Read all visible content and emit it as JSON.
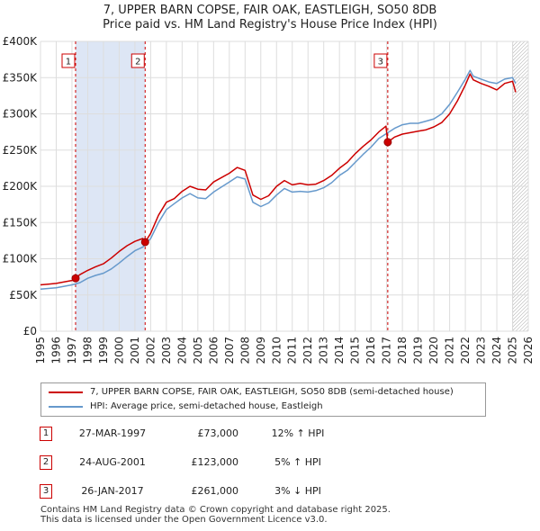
{
  "title_line1": "7, UPPER BARN COPSE, FAIR OAK, EASTLEIGH, SO50 8DB",
  "title_line2": "Price paid vs. HM Land Registry's House Price Index (HPI)",
  "legend": {
    "property": "7, UPPER BARN COPSE, FAIR OAK, EASTLEIGH, SO50 8DB (semi-detached house)",
    "hpi": "HPI: Average price, semi-detached house, Eastleigh"
  },
  "sales": [
    {
      "num": "1",
      "date": "27-MAR-1997",
      "price": "£73,000",
      "hpi": "12% ↑ HPI"
    },
    {
      "num": "2",
      "date": "24-AUG-2001",
      "price": "£123,000",
      "hpi": "5% ↑ HPI"
    },
    {
      "num": "3",
      "date": "26-JAN-2017",
      "price": "£261,000",
      "hpi": "3% ↓ HPI"
    }
  ],
  "footer_line1": "Contains HM Land Registry data © Crown copyright and database right 2025.",
  "footer_line2": "This data is licensed under the Open Government Licence v3.0.",
  "chart_data": {
    "type": "line",
    "title": "7, UPPER BARN COPSE, FAIR OAK, EASTLEIGH, SO50 8DB",
    "subtitle": "Price paid vs. HM Land Registry's House Price Index (HPI)",
    "xlabel": "",
    "ylabel": "",
    "xlim": [
      1995,
      2026
    ],
    "ylim": [
      0,
      400000
    ],
    "ytick_values": [
      0,
      50000,
      100000,
      150000,
      200000,
      250000,
      300000,
      350000,
      400000
    ],
    "ytick_labels": [
      "£0",
      "£50K",
      "£100K",
      "£150K",
      "£200K",
      "£250K",
      "£300K",
      "£350K",
      "£400K"
    ],
    "xtick_labels": [
      "1995",
      "1996",
      "1997",
      "1998",
      "1999",
      "2000",
      "2001",
      "2002",
      "2003",
      "2004",
      "2005",
      "2006",
      "2007",
      "2008",
      "2009",
      "2010",
      "2011",
      "2012",
      "2013",
      "2014",
      "2015",
      "2016",
      "2017",
      "2018",
      "2019",
      "2020",
      "2021",
      "2022",
      "2023",
      "2024",
      "2025",
      "2026"
    ],
    "grid": true,
    "legend_position": "below",
    "colors": {
      "property": "#cc0000",
      "hpi": "#6699cc",
      "shade": "#dde6f5",
      "grid": "#dddddd"
    },
    "series": [
      {
        "name": "7, UPPER BARN COPSE, FAIR OAK, EASTLEIGH, SO50 8DB (semi-detached house)",
        "x": [
          1995.0,
          1995.5,
          1996.0,
          1996.5,
          1997.0,
          1997.23,
          1997.5,
          1998.0,
          1998.5,
          1999.0,
          1999.5,
          2000.0,
          2000.5,
          2001.0,
          2001.5,
          2001.65,
          2002.0,
          2002.5,
          2003.0,
          2003.5,
          2004.0,
          2004.5,
          2005.0,
          2005.5,
          2006.0,
          2006.5,
          2007.0,
          2007.5,
          2008.0,
          2008.5,
          2009.0,
          2009.5,
          2010.0,
          2010.5,
          2011.0,
          2011.5,
          2012.0,
          2012.5,
          2013.0,
          2013.5,
          2014.0,
          2014.5,
          2015.0,
          2015.5,
          2016.0,
          2016.5,
          2016.95,
          2017.07,
          2017.5,
          2018.0,
          2018.5,
          2019.0,
          2019.5,
          2020.0,
          2020.5,
          2021.0,
          2021.5,
          2022.0,
          2022.3,
          2022.5,
          2023.0,
          2023.5,
          2024.0,
          2024.5,
          2025.0,
          2025.2
        ],
        "y": [
          64000,
          65000,
          66000,
          68000,
          70000,
          73000,
          78000,
          84000,
          89000,
          93000,
          101000,
          110000,
          118000,
          124000,
          128000,
          123000,
          135000,
          160000,
          178000,
          183000,
          193000,
          200000,
          196000,
          195000,
          206000,
          212000,
          218000,
          226000,
          222000,
          188000,
          182000,
          187000,
          200000,
          208000,
          202000,
          204000,
          202000,
          203000,
          208000,
          215000,
          225000,
          233000,
          245000,
          255000,
          264000,
          275000,
          283000,
          261000,
          268000,
          272000,
          274000,
          276000,
          278000,
          282000,
          288000,
          300000,
          318000,
          340000,
          355000,
          347000,
          342000,
          338000,
          333000,
          342000,
          345000,
          330000
        ]
      },
      {
        "name": "HPI: Average price, semi-detached house, Eastleigh",
        "x": [
          1995.0,
          1995.5,
          1996.0,
          1996.5,
          1997.0,
          1997.5,
          1998.0,
          1998.5,
          1999.0,
          1999.5,
          2000.0,
          2000.5,
          2001.0,
          2001.5,
          2002.0,
          2002.5,
          2003.0,
          2003.5,
          2004.0,
          2004.5,
          2005.0,
          2005.5,
          2006.0,
          2006.5,
          2007.0,
          2007.5,
          2008.0,
          2008.5,
          2009.0,
          2009.5,
          2010.0,
          2010.5,
          2011.0,
          2011.5,
          2012.0,
          2012.5,
          2013.0,
          2013.5,
          2014.0,
          2014.5,
          2015.0,
          2015.5,
          2016.0,
          2016.5,
          2017.0,
          2017.5,
          2018.0,
          2018.5,
          2019.0,
          2019.5,
          2020.0,
          2020.5,
          2021.0,
          2021.5,
          2022.0,
          2022.3,
          2022.5,
          2023.0,
          2023.5,
          2024.0,
          2024.5,
          2025.0,
          2025.2
        ],
        "y": [
          58000,
          59000,
          60000,
          62000,
          64000,
          67000,
          73000,
          77000,
          80000,
          86000,
          94000,
          103000,
          111000,
          116000,
          128000,
          150000,
          168000,
          176000,
          184000,
          190000,
          184000,
          183000,
          192000,
          199000,
          206000,
          213000,
          210000,
          178000,
          172000,
          177000,
          188000,
          197000,
          192000,
          193000,
          192000,
          194000,
          198000,
          205000,
          215000,
          222000,
          233000,
          244000,
          254000,
          266000,
          273000,
          280000,
          285000,
          287000,
          287000,
          290000,
          293000,
          300000,
          313000,
          330000,
          348000,
          360000,
          352000,
          348000,
          344000,
          342000,
          348000,
          350000,
          342000
        ]
      }
    ],
    "sales_markers": [
      {
        "label": "1",
        "x": 1997.23,
        "y": 73000
      },
      {
        "label": "2",
        "x": 2001.65,
        "y": 123000
      },
      {
        "label": "3",
        "x": 2017.07,
        "y": 261000
      }
    ],
    "shaded_periods": [
      [
        1997.23,
        2001.65
      ],
      [
        2025.0,
        2026.0
      ]
    ]
  }
}
